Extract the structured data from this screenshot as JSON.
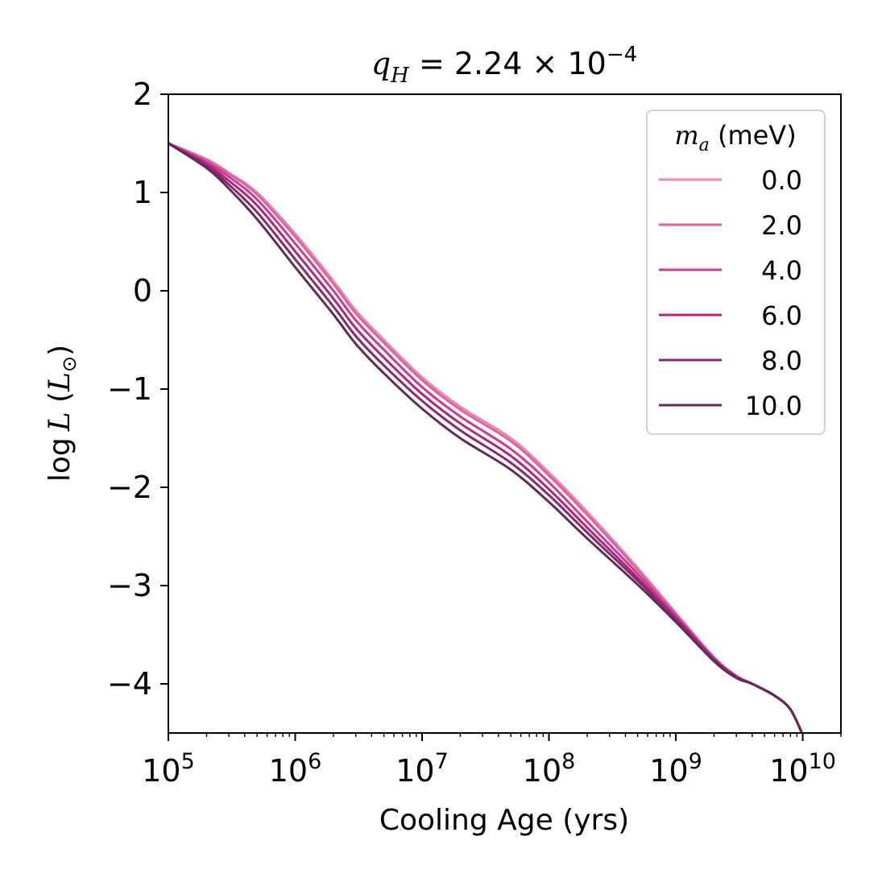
{
  "chart_data": {
    "type": "line",
    "title": {
      "var": "q",
      "sub": "H",
      "rest": " = 2.24 × 10",
      "exp": "−4"
    },
    "xlabel": "Cooling Age (yrs)",
    "ylabel": {
      "pre": "log",
      "var": "L",
      "unit_open": " (",
      "unit_var": "L",
      "unit_sub": "⊙",
      "unit_close": ")"
    },
    "x_scale": "log",
    "xlim": [
      100000,
      20000000000
    ],
    "ylim": [
      -4.5,
      2.0
    ],
    "x_ticks": [
      {
        "value": 100000,
        "base": "10",
        "exp": "5"
      },
      {
        "value": 1000000,
        "base": "10",
        "exp": "6"
      },
      {
        "value": 10000000,
        "base": "10",
        "exp": "7"
      },
      {
        "value": 100000000,
        "base": "10",
        "exp": "8"
      },
      {
        "value": 1000000000,
        "base": "10",
        "exp": "9"
      },
      {
        "value": 10000000000,
        "base": "10",
        "exp": "10"
      }
    ],
    "y_ticks": [
      {
        "value": 2,
        "label": "2"
      },
      {
        "value": 1,
        "label": "1"
      },
      {
        "value": 0,
        "label": "0"
      },
      {
        "value": -1,
        "label": "−1"
      },
      {
        "value": -2,
        "label": "−2"
      },
      {
        "value": -3,
        "label": "−3"
      },
      {
        "value": -4,
        "label": "−4"
      }
    ],
    "grid": false,
    "legend": {
      "placement": "top-right",
      "title_var": "m",
      "title_sub": "a",
      "title_rest": " (meV)"
    },
    "series": [
      {
        "name": "0.0",
        "color": "#ea87ab",
        "x": [
          100000,
          200000,
          300000,
          500000,
          1000000,
          2000000,
          3000000,
          5000000,
          10000000,
          20000000,
          50000000,
          100000000,
          200000000,
          500000000,
          1000000000,
          2000000000,
          3000000000,
          4000000000,
          6000000000,
          8000000000,
          10000000000
        ],
        "y": [
          1.5,
          1.34,
          1.2,
          1.0,
          0.58,
          0.1,
          -0.2,
          -0.5,
          -0.88,
          -1.18,
          -1.5,
          -1.85,
          -2.25,
          -2.82,
          -3.28,
          -3.73,
          -3.92,
          -4.0,
          -4.12,
          -4.26,
          -4.52
        ]
      },
      {
        "name": "2.0",
        "color": "#de62a2",
        "x": [
          100000,
          200000,
          300000,
          500000,
          1000000,
          2000000,
          3000000,
          5000000,
          10000000,
          20000000,
          50000000,
          100000000,
          200000000,
          500000000,
          1000000000,
          2000000000,
          3000000000,
          4000000000,
          6000000000,
          8000000000,
          10000000000
        ],
        "y": [
          1.5,
          1.33,
          1.19,
          0.98,
          0.55,
          0.07,
          -0.23,
          -0.53,
          -0.91,
          -1.21,
          -1.53,
          -1.88,
          -2.28,
          -2.84,
          -3.29,
          -3.73,
          -3.92,
          -4.0,
          -4.12,
          -4.26,
          -4.52
        ]
      },
      {
        "name": "4.0",
        "color": "#cc3a94",
        "x": [
          100000,
          200000,
          300000,
          500000,
          1000000,
          2000000,
          3000000,
          5000000,
          10000000,
          20000000,
          50000000,
          100000000,
          200000000,
          500000000,
          1000000000,
          2000000000,
          3000000000,
          4000000000,
          6000000000,
          8000000000,
          10000000000
        ],
        "y": [
          1.5,
          1.31,
          1.16,
          0.93,
          0.48,
          0.0,
          -0.3,
          -0.6,
          -0.98,
          -1.28,
          -1.61,
          -1.95,
          -2.35,
          -2.88,
          -3.31,
          -3.74,
          -3.92,
          -4.0,
          -4.12,
          -4.26,
          -4.52
        ]
      },
      {
        "name": "6.0",
        "color": "#ae2582",
        "x": [
          100000,
          200000,
          300000,
          500000,
          1000000,
          2000000,
          3000000,
          5000000,
          10000000,
          20000000,
          50000000,
          100000000,
          200000000,
          500000000,
          1000000000,
          2000000000,
          3000000000,
          4000000000,
          6000000000,
          8000000000,
          10000000000
        ],
        "y": [
          1.5,
          1.29,
          1.12,
          0.87,
          0.4,
          -0.08,
          -0.38,
          -0.68,
          -1.05,
          -1.35,
          -1.68,
          -2.02,
          -2.41,
          -2.92,
          -3.33,
          -3.75,
          -3.93,
          -4.0,
          -4.12,
          -4.26,
          -4.52
        ]
      },
      {
        "name": "8.0",
        "color": "#872870",
        "x": [
          100000,
          200000,
          300000,
          500000,
          1000000,
          2000000,
          3000000,
          5000000,
          10000000,
          20000000,
          50000000,
          100000000,
          200000000,
          500000000,
          1000000000,
          2000000000,
          3000000000,
          4000000000,
          6000000000,
          8000000000,
          10000000000
        ],
        "y": [
          1.5,
          1.27,
          1.08,
          0.8,
          0.32,
          -0.16,
          -0.46,
          -0.76,
          -1.12,
          -1.42,
          -1.75,
          -2.08,
          -2.46,
          -2.95,
          -3.35,
          -3.76,
          -3.93,
          -4.0,
          -4.12,
          -4.26,
          -4.52
        ]
      },
      {
        "name": "10.0",
        "color": "#632a55",
        "x": [
          100000,
          200000,
          300000,
          500000,
          1000000,
          2000000,
          3000000,
          5000000,
          10000000,
          20000000,
          50000000,
          100000000,
          200000000,
          500000000,
          1000000000,
          2000000000,
          3000000000,
          4000000000,
          6000000000,
          8000000000,
          10000000000
        ],
        "y": [
          1.5,
          1.25,
          1.04,
          0.73,
          0.24,
          -0.24,
          -0.54,
          -0.84,
          -1.2,
          -1.5,
          -1.82,
          -2.15,
          -2.52,
          -2.99,
          -3.37,
          -3.77,
          -3.94,
          -4.0,
          -4.12,
          -4.26,
          -4.52
        ]
      }
    ]
  }
}
